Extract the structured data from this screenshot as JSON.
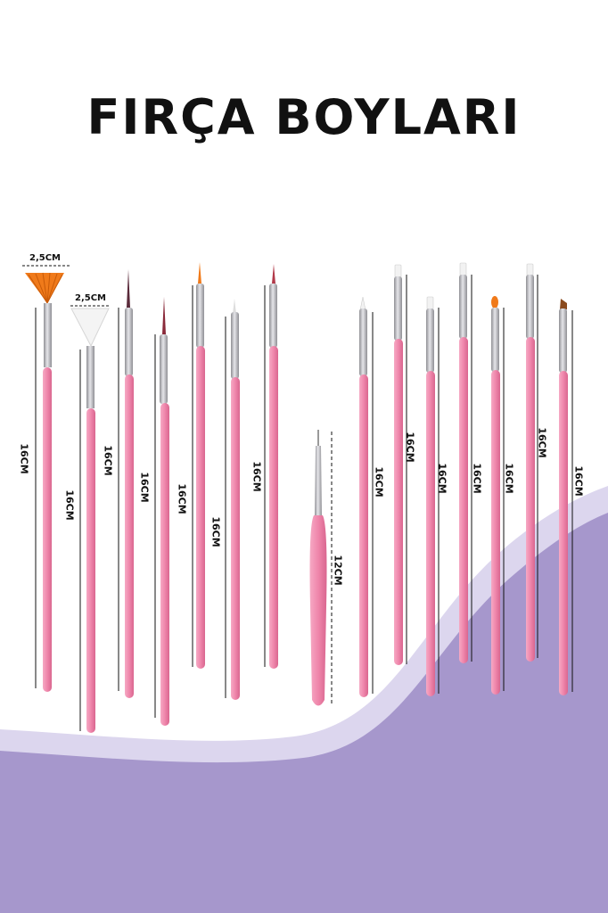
{
  "title": "FIRÇA BOYLARI",
  "colors": {
    "background": "#ffffff",
    "purple_wave": "#a697cc",
    "light_wave": "#dcd6ee",
    "handle_pink": "#ef86ab",
    "ferrule_silver": "#b8b8bc",
    "bristle_orange": "#f07a1a",
    "bristle_white": "#f4f4f4",
    "bristle_brown": "#8a4a1e",
    "text": "#111111"
  },
  "labels": {
    "fan_width_1": "2,5CM",
    "fan_width_2": "2,5CM",
    "length_16": "16CM",
    "length_12": "12CM"
  },
  "brushes": [
    {
      "name": "fan-orange",
      "tip": "fan-orange",
      "length_label": "16CM"
    },
    {
      "name": "fan-white",
      "tip": "fan-white",
      "length_label": "16CM"
    },
    {
      "name": "liner-1",
      "tip": "fine-liner",
      "length_label": "16CM"
    },
    {
      "name": "liner-2",
      "tip": "fine-liner",
      "length_label": "16CM"
    },
    {
      "name": "liner-3",
      "tip": "fine-liner",
      "length_label": "16CM"
    },
    {
      "name": "liner-4",
      "tip": "fine-liner",
      "length_label": "16CM"
    },
    {
      "name": "liner-5",
      "tip": "fine-liner",
      "length_label": "16CM"
    },
    {
      "name": "dotting-tool",
      "tip": "needle",
      "length_label": "12CM"
    },
    {
      "name": "round-1",
      "tip": "round-white",
      "length_label": "16CM"
    },
    {
      "name": "flat-1",
      "tip": "flat-white",
      "length_label": "16CM"
    },
    {
      "name": "flat-2",
      "tip": "flat-white",
      "length_label": "16CM"
    },
    {
      "name": "flat-3",
      "tip": "flat-white",
      "length_label": "16CM"
    },
    {
      "name": "oval-orange",
      "tip": "oval-orange",
      "length_label": "16CM"
    },
    {
      "name": "flat-4",
      "tip": "flat-white",
      "length_label": "16CM"
    },
    {
      "name": "angled-brown",
      "tip": "angled-brown",
      "length_label": "16CM"
    }
  ]
}
